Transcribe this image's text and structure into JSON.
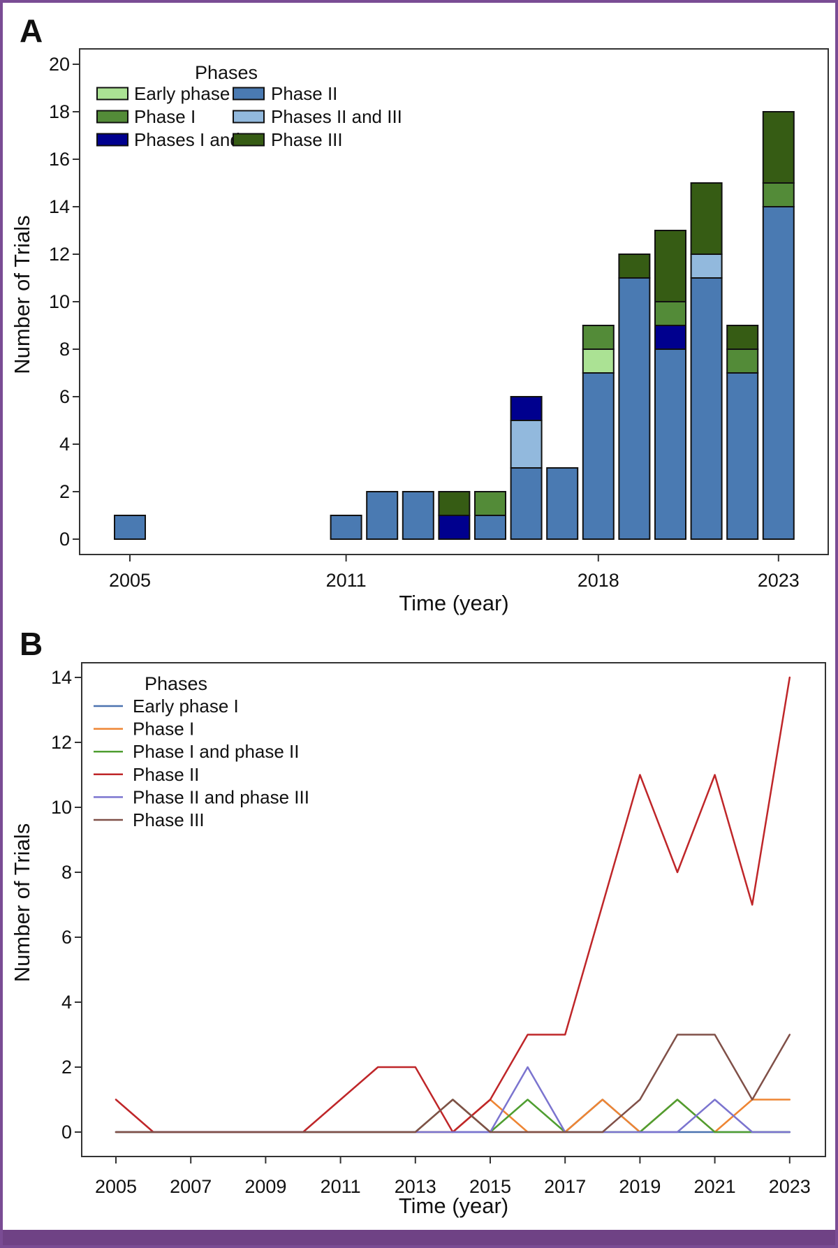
{
  "figure": {
    "panel_a_label": "A",
    "panel_b_label": "B",
    "border_color": "#7a4c94",
    "footer_band_color": "#6f4285",
    "background": "#ffffff",
    "text_color": "#111111",
    "axis_color": "#333333",
    "bar_edge_color": "#111111"
  },
  "chart_data": [
    {
      "id": "panel-a",
      "type": "bar",
      "stacked": true,
      "title": "",
      "xlabel": "Time (year)",
      "ylabel": "Number of Trials",
      "legend_title": "Phases",
      "legend_position": "upper-left-inside, two columns",
      "grid": false,
      "ylim": [
        0,
        20
      ],
      "yticks": [
        0,
        2,
        4,
        6,
        8,
        10,
        12,
        14,
        16,
        18,
        20
      ],
      "xtick_years": [
        2005,
        2011,
        2018,
        2023
      ],
      "xtick_labels": [
        "2005",
        "2011",
        "2018",
        "2023"
      ],
      "years": [
        2005,
        2006,
        2007,
        2008,
        2009,
        2010,
        2011,
        2012,
        2013,
        2014,
        2015,
        2016,
        2017,
        2018,
        2019,
        2020,
        2021,
        2022,
        2023
      ],
      "stack_order": [
        "Phase II",
        "Phases II and III",
        "Phases I and II",
        "Early phase I",
        "Phase I",
        "Phase III"
      ],
      "legend_columns": [
        [
          "Early phase I",
          "Phase I",
          "Phases I and II"
        ],
        [
          "Phase II",
          "Phases II and III",
          "Phase III"
        ]
      ],
      "series": [
        {
          "name": "Early phase I",
          "color": "#abe294",
          "values": [
            0,
            0,
            0,
            0,
            0,
            0,
            0,
            0,
            0,
            0,
            0,
            0,
            0,
            1,
            0,
            0,
            0,
            0,
            0
          ]
        },
        {
          "name": "Phase I",
          "color": "#538b38",
          "values": [
            0,
            0,
            0,
            0,
            0,
            0,
            0,
            0,
            0,
            0,
            1,
            0,
            0,
            1,
            0,
            1,
            0,
            1,
            1
          ]
        },
        {
          "name": "Phases I and II",
          "color": "#00008e",
          "values": [
            0,
            0,
            0,
            0,
            0,
            0,
            0,
            0,
            0,
            1,
            0,
            1,
            0,
            0,
            0,
            1,
            0,
            0,
            0
          ]
        },
        {
          "name": "Phase II",
          "color": "#4a7ab2",
          "values": [
            1,
            0,
            0,
            0,
            0,
            0,
            1,
            2,
            2,
            0,
            1,
            3,
            3,
            7,
            11,
            8,
            11,
            7,
            14
          ]
        },
        {
          "name": "Phases II and III",
          "color": "#92b9dd",
          "values": [
            0,
            0,
            0,
            0,
            0,
            0,
            0,
            0,
            0,
            0,
            0,
            2,
            0,
            0,
            0,
            0,
            1,
            0,
            0
          ]
        },
        {
          "name": "Phase III",
          "color": "#365c14",
          "values": [
            0,
            0,
            0,
            0,
            0,
            0,
            0,
            0,
            0,
            1,
            0,
            0,
            0,
            0,
            1,
            3,
            3,
            1,
            3
          ]
        }
      ]
    },
    {
      "id": "panel-b",
      "type": "line",
      "title": "",
      "xlabel": "Time (year)",
      "ylabel": "Number of Trials",
      "legend_title": "Phases",
      "legend_position": "upper-left-inside, single column",
      "grid": false,
      "ylim": [
        0,
        14
      ],
      "yticks": [
        0,
        2,
        4,
        6,
        8,
        10,
        12,
        14
      ],
      "xtick_years": [
        2005,
        2007,
        2009,
        2011,
        2013,
        2015,
        2017,
        2019,
        2021,
        2023
      ],
      "xtick_labels": [
        "2005",
        "2007",
        "2009",
        "2011",
        "2013",
        "2015",
        "2017",
        "2019",
        "2021",
        "2023"
      ],
      "years": [
        2005,
        2006,
        2007,
        2008,
        2009,
        2010,
        2011,
        2012,
        2013,
        2014,
        2015,
        2016,
        2017,
        2018,
        2019,
        2020,
        2021,
        2022,
        2023
      ],
      "series": [
        {
          "name": "Early phase I",
          "color": "#4c72b0",
          "values": [
            0,
            0,
            0,
            0,
            0,
            0,
            0,
            0,
            0,
            0,
            0,
            0,
            0,
            1,
            0,
            0,
            0,
            0,
            0
          ]
        },
        {
          "name": "Phase I",
          "color": "#ee8533",
          "values": [
            0,
            0,
            0,
            0,
            0,
            0,
            0,
            0,
            0,
            0,
            1,
            0,
            0,
            1,
            0,
            1,
            0,
            1,
            1
          ]
        },
        {
          "name": "Phase I and phase II",
          "color": "#4f9e31",
          "values": [
            0,
            0,
            0,
            0,
            0,
            0,
            0,
            0,
            0,
            1,
            0,
            1,
            0,
            0,
            0,
            1,
            0,
            0,
            0
          ]
        },
        {
          "name": "Phase II",
          "color": "#bf2629",
          "values": [
            1,
            0,
            0,
            0,
            0,
            0,
            1,
            2,
            2,
            0,
            1,
            3,
            3,
            7,
            11,
            8,
            11,
            7,
            14
          ]
        },
        {
          "name": "Phase II and phase III",
          "color": "#7b74cf",
          "values": [
            0,
            0,
            0,
            0,
            0,
            0,
            0,
            0,
            0,
            0,
            0,
            2,
            0,
            0,
            0,
            0,
            1,
            0,
            0
          ]
        },
        {
          "name": "Phase III",
          "color": "#805048",
          "values": [
            0,
            0,
            0,
            0,
            0,
            0,
            0,
            0,
            0,
            1,
            0,
            0,
            0,
            0,
            1,
            3,
            3,
            1,
            3
          ]
        }
      ]
    }
  ]
}
